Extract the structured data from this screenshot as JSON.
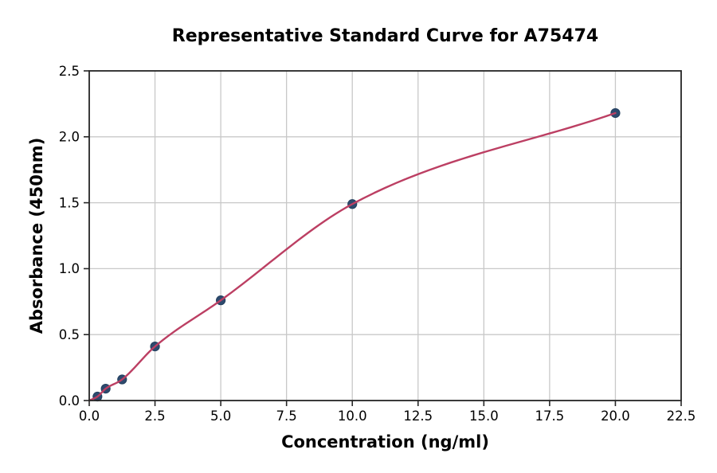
{
  "chart_data": {
    "type": "scatter",
    "title": "Representative Standard Curve for A75474",
    "xlabel": "Concentration (ng/ml)",
    "ylabel": "Absorbance (450nm)",
    "xlim": [
      0,
      22.5
    ],
    "ylim": [
      0,
      2.5
    ],
    "x_ticks": [
      0,
      2.5,
      5,
      7.5,
      10,
      12.5,
      15,
      17.5,
      20,
      22.5
    ],
    "x_tick_labels": [
      "0.0",
      "2.5",
      "5.0",
      "7.5",
      "10.0",
      "12.5",
      "15.0",
      "17.5",
      "20.0",
      "22.5"
    ],
    "y_ticks": [
      0,
      0.5,
      1,
      1.5,
      2,
      2.5
    ],
    "y_tick_labels": [
      "0.0",
      "0.5",
      "1.0",
      "1.5",
      "2.0",
      "2.5"
    ],
    "grid": true,
    "legend": "none",
    "series": [
      {
        "name": "standard-points",
        "style": "markers",
        "x": [
          0.313,
          0.625,
          1.25,
          2.5,
          5,
          10,
          20
        ],
        "y": [
          0.03,
          0.09,
          0.16,
          0.41,
          0.76,
          1.49,
          2.18
        ]
      },
      {
        "name": "fit-curve",
        "style": "smooth-line-through-points",
        "x": [
          0,
          0.313,
          0.625,
          1.25,
          2.5,
          5,
          10,
          20
        ],
        "y": [
          0.0,
          0.03,
          0.09,
          0.16,
          0.41,
          0.76,
          1.49,
          2.18
        ]
      }
    ],
    "colors": {
      "marker": "#2d4a6e",
      "marker_edge": "#24405f",
      "line": "#bc3f63",
      "grid": "#c8c8c8",
      "spine": "#262626",
      "text": "#000000",
      "background": "#ffffff"
    }
  }
}
